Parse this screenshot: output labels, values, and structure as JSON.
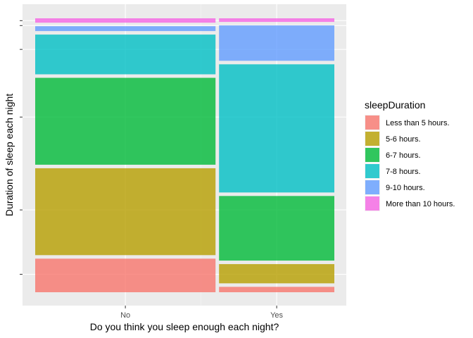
{
  "chart_data": {
    "type": "mosaic",
    "title": "",
    "xlabel": "Do you think you sleep enough each night?",
    "ylabel": "Duration of sleep each night",
    "legend_title": "sleepDuration",
    "legend_position": "right",
    "grid": true,
    "categories": [
      "No",
      "Yes"
    ],
    "category_widths": [
      0.61,
      0.39
    ],
    "series": [
      {
        "name": "Less than 5 hours.",
        "color": "#F8766D",
        "values": [
          0.131,
          0.021
        ]
      },
      {
        "name": "5-6 hours.",
        "color": "#B79F00",
        "values": [
          0.339,
          0.075
        ]
      },
      {
        "name": "6-7 hours.",
        "color": "#00BA38",
        "values": [
          0.339,
          0.252
        ]
      },
      {
        "name": "7-8 hours.",
        "color": "#00BFC4",
        "values": [
          0.155,
          0.5
        ]
      },
      {
        "name": "9-10 hours.",
        "color": "#619CFF",
        "values": [
          0.019,
          0.138
        ]
      },
      {
        "name": "More than 10 hours.",
        "color": "#F564E3",
        "values": [
          0.017,
          0.014
        ]
      }
    ]
  }
}
